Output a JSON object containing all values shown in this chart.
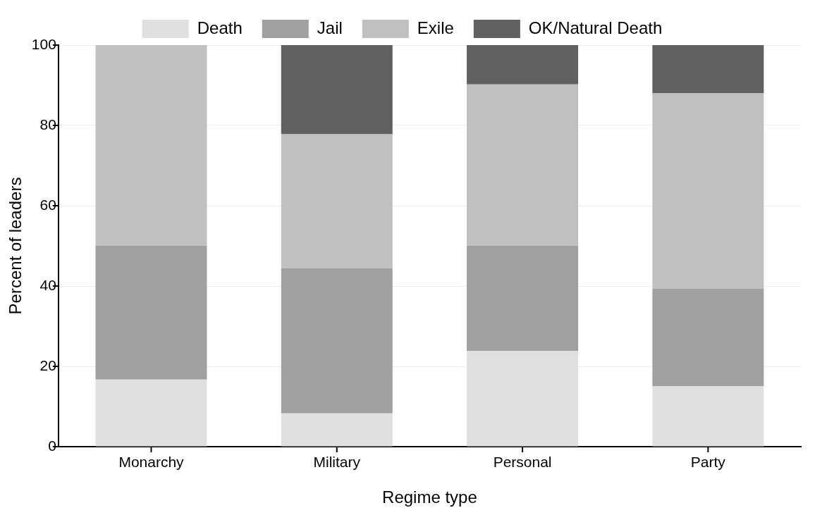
{
  "chart_data": {
    "type": "bar",
    "xlabel": "Regime type",
    "ylabel": "Percent of leaders",
    "categories": [
      "Monarchy",
      "Military",
      "Personal",
      "Party"
    ],
    "series": [
      {
        "name": "Death",
        "color": "#e0e0e0",
        "values": [
          16.7,
          8.3,
          23.8,
          15.1
        ]
      },
      {
        "name": "Jail",
        "color": "#a0a0a0",
        "values": [
          33.3,
          36.1,
          26.2,
          24.2
        ]
      },
      {
        "name": "Exile",
        "color": "#c0c0c0",
        "values": [
          50,
          33.4,
          40.2,
          48.7
        ]
      },
      {
        "name": "OK/Natural Death",
        "color": "#606060",
        "values": [
          0,
          22.2,
          9.8,
          12
        ]
      }
    ],
    "stacked": true,
    "ylim": [
      0,
      100
    ],
    "yticks": [
      0,
      20,
      40,
      60,
      80,
      100
    ],
    "grid": "y",
    "legend": "top"
  }
}
